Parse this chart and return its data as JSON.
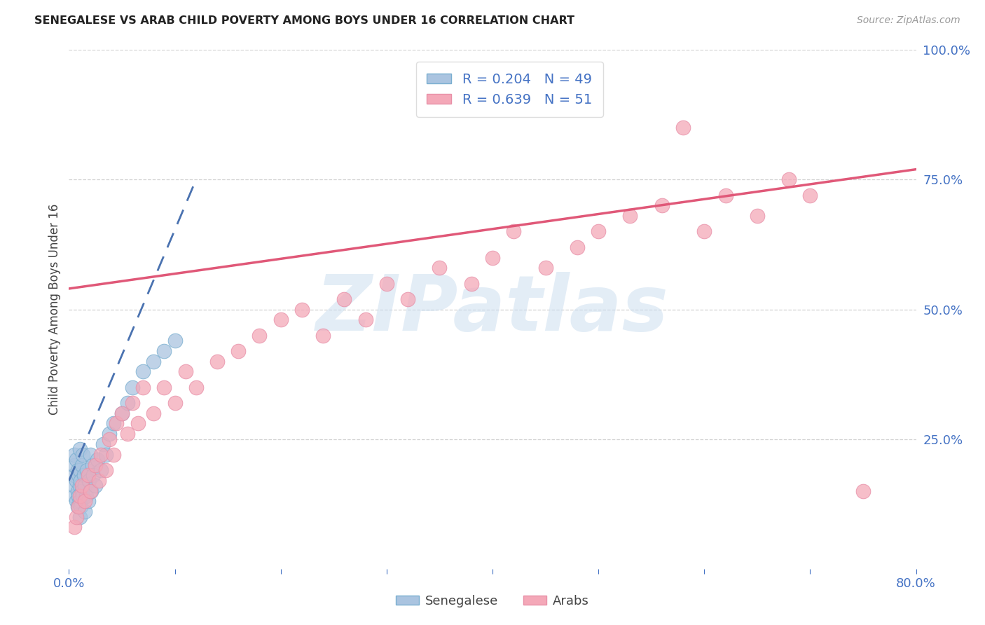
{
  "title": "SENEGALESE VS ARAB CHILD POVERTY AMONG BOYS UNDER 16 CORRELATION CHART",
  "source": "Source: ZipAtlas.com",
  "ylabel": "Child Poverty Among Boys Under 16",
  "senegalese_R": 0.204,
  "senegalese_N": 49,
  "arab_R": 0.639,
  "arab_N": 51,
  "senegalese_color": "#aac4e0",
  "arab_color": "#f4a8b8",
  "senegalese_edge_color": "#7aafd0",
  "arab_edge_color": "#e890a8",
  "senegalese_line_color": "#4a72b0",
  "arab_line_color": "#e05878",
  "watermark": "ZIPatlas",
  "watermark_color": "#ccdff0",
  "tick_color": "#4472c4",
  "title_color": "#222222",
  "source_color": "#999999",
  "ylabel_color": "#444444",
  "grid_color": "#cccccc",
  "legend_edge_color": "#dddddd",
  "arab_line_x0": 0.0,
  "arab_line_y0": 0.54,
  "arab_line_x1": 0.8,
  "arab_line_y1": 0.77,
  "sen_line_x0": 0.0,
  "sen_line_y0": 0.17,
  "sen_line_x1": 0.12,
  "sen_line_y1": 0.75,
  "xlim": [
    0.0,
    0.8
  ],
  "ylim": [
    0.0,
    1.0
  ],
  "x_ticks": [
    0.0,
    0.1,
    0.2,
    0.3,
    0.4,
    0.5,
    0.6,
    0.7,
    0.8
  ],
  "x_tick_labels": [
    "0.0%",
    "",
    "",
    "",
    "",
    "",
    "",
    "",
    "80.0%"
  ],
  "y_ticks": [
    0.0,
    0.25,
    0.5,
    0.75,
    1.0
  ],
  "y_tick_labels": [
    "",
    "25.0%",
    "50.0%",
    "75.0%",
    "100.0%"
  ],
  "senegalese_x": [
    0.005,
    0.005,
    0.005,
    0.005,
    0.005,
    0.007,
    0.007,
    0.007,
    0.008,
    0.008,
    0.008,
    0.009,
    0.009,
    0.01,
    0.01,
    0.01,
    0.01,
    0.01,
    0.011,
    0.011,
    0.012,
    0.012,
    0.013,
    0.013,
    0.014,
    0.015,
    0.015,
    0.016,
    0.017,
    0.018,
    0.019,
    0.02,
    0.021,
    0.022,
    0.023,
    0.025,
    0.027,
    0.03,
    0.032,
    0.035,
    0.038,
    0.042,
    0.05,
    0.055,
    0.06,
    0.07,
    0.08,
    0.09,
    0.1
  ],
  "senegalese_y": [
    0.14,
    0.16,
    0.18,
    0.2,
    0.22,
    0.13,
    0.17,
    0.21,
    0.12,
    0.15,
    0.19,
    0.14,
    0.18,
    0.1,
    0.13,
    0.16,
    0.19,
    0.23,
    0.12,
    0.17,
    0.15,
    0.2,
    0.14,
    0.22,
    0.18,
    0.11,
    0.16,
    0.14,
    0.19,
    0.13,
    0.17,
    0.22,
    0.15,
    0.2,
    0.18,
    0.16,
    0.21,
    0.19,
    0.24,
    0.22,
    0.26,
    0.28,
    0.3,
    0.32,
    0.35,
    0.38,
    0.4,
    0.42,
    0.44
  ],
  "arab_x": [
    0.005,
    0.007,
    0.009,
    0.01,
    0.012,
    0.015,
    0.018,
    0.02,
    0.025,
    0.028,
    0.03,
    0.035,
    0.038,
    0.042,
    0.045,
    0.05,
    0.055,
    0.06,
    0.065,
    0.07,
    0.08,
    0.09,
    0.1,
    0.11,
    0.12,
    0.14,
    0.16,
    0.18,
    0.2,
    0.22,
    0.24,
    0.26,
    0.28,
    0.3,
    0.32,
    0.35,
    0.38,
    0.4,
    0.42,
    0.45,
    0.48,
    0.5,
    0.53,
    0.56,
    0.6,
    0.62,
    0.65,
    0.68,
    0.7,
    0.58,
    0.75
  ],
  "arab_y": [
    0.08,
    0.1,
    0.12,
    0.14,
    0.16,
    0.13,
    0.18,
    0.15,
    0.2,
    0.17,
    0.22,
    0.19,
    0.25,
    0.22,
    0.28,
    0.3,
    0.26,
    0.32,
    0.28,
    0.35,
    0.3,
    0.35,
    0.32,
    0.38,
    0.35,
    0.4,
    0.42,
    0.45,
    0.48,
    0.5,
    0.45,
    0.52,
    0.48,
    0.55,
    0.52,
    0.58,
    0.55,
    0.6,
    0.65,
    0.58,
    0.62,
    0.65,
    0.68,
    0.7,
    0.65,
    0.72,
    0.68,
    0.75,
    0.72,
    0.85,
    0.15
  ]
}
